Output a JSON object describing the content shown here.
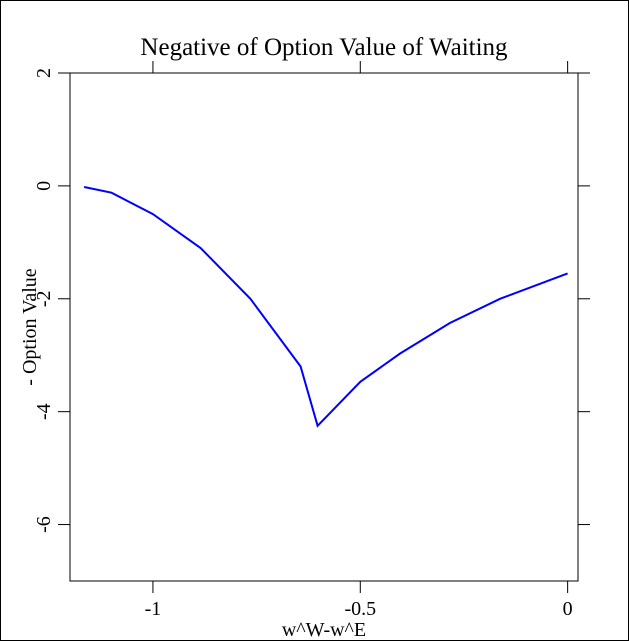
{
  "chart_data": {
    "type": "line",
    "title": "Negative of Option Value of Waiting",
    "x_label": "w^W-w^E",
    "y_label": "- Option Value",
    "x": [
      -1.166,
      -1.1,
      -1.0,
      -0.885,
      -0.765,
      -0.644,
      -0.603,
      -0.5,
      -0.404,
      -0.284,
      -0.163,
      0
    ],
    "series": [
      {
        "name": "- Option Value",
        "color": "#0000ff",
        "values": [
          -0.02,
          -0.12,
          -0.5,
          -1.1,
          -2.0,
          -3.2,
          -4.25,
          -3.47,
          -2.97,
          -2.43,
          -2.0,
          -1.55
        ]
      }
    ],
    "xlim": [
      -1.2,
      0.025
    ],
    "ylim": [
      -7,
      2
    ],
    "xticks": [
      -1,
      -0.5,
      0
    ],
    "yticks": [
      -6,
      -4,
      -2,
      0,
      2
    ]
  }
}
